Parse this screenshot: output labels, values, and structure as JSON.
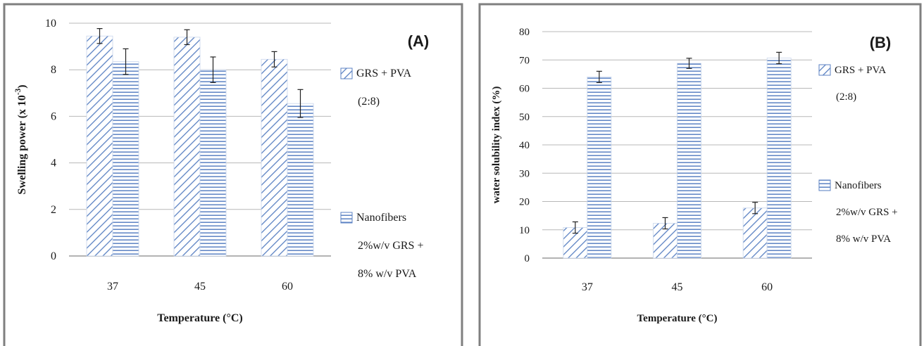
{
  "chart_data": [
    {
      "type": "bar",
      "panel_label": "(A)",
      "categories": [
        "37",
        "45",
        "60"
      ],
      "series": [
        {
          "name_lines": [
            "GRS  +  PVA",
            "(2:8)"
          ],
          "values": [
            9.45,
            9.4,
            8.45
          ],
          "errors": [
            0.32,
            0.32,
            0.33
          ],
          "pattern": "diagonal"
        },
        {
          "name_lines": [
            "Nanofibers",
            "2%w/v GRS  +",
            "8% w/v PVA"
          ],
          "values": [
            8.35,
            8.0,
            6.55
          ],
          "errors": [
            0.55,
            0.55,
            0.6
          ],
          "pattern": "horizontal"
        }
      ],
      "xlabel": "Temperature (°C)",
      "ylabel": "Swelling  power (x 10",
      "ylabel_sup": "-3",
      "ylabel_tail": ")",
      "ylim": [
        0,
        10
      ],
      "yticks": [
        "0",
        "2",
        "4",
        "6",
        "8",
        "10"
      ],
      "grid": true,
      "legend": "right"
    },
    {
      "type": "bar",
      "panel_label": "(B)",
      "categories": [
        "37",
        "45",
        "60"
      ],
      "series": [
        {
          "name_lines": [
            "GRS  +  PVA",
            "(2:8)"
          ],
          "values": [
            10.8,
            12.3,
            17.7
          ],
          "errors": [
            2.0,
            2.0,
            2.0
          ],
          "pattern": "diagonal"
        },
        {
          "name_lines": [
            "Nanofibers",
            "2%w/v GRS  +",
            "8% w/v PVA"
          ],
          "values": [
            64.0,
            68.8,
            70.7
          ],
          "errors": [
            2.0,
            1.8,
            2.0
          ],
          "pattern": "horizontal"
        }
      ],
      "xlabel": "Temperature (°C)",
      "ylabel": "water solubility index (%)",
      "ylim": [
        0,
        80
      ],
      "yticks": [
        "0",
        "10",
        "20",
        "30",
        "40",
        "50",
        "60",
        "70",
        "80"
      ],
      "grid": true,
      "legend": "right"
    }
  ],
  "colors": {
    "bar_stroke": "#5b82c3",
    "frame": "#7f7f7f",
    "grid": "#b8b8b8",
    "bar_fill": "#ffffff"
  }
}
